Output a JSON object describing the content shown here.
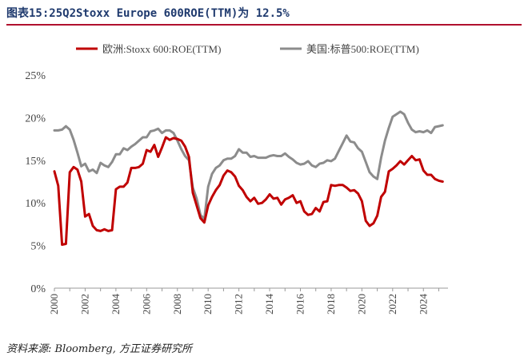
{
  "title": "图表15:25Q2Stoxx Europe 600ROE(TTM)为 12.5%",
  "source": "资料来源: Bloomberg, 方正证券研究所",
  "colors": {
    "europe": "#c00000",
    "us": "#8c8c8c",
    "title_rule": "#b0102e"
  },
  "chart_data": {
    "type": "line",
    "title": "25Q2Stoxx Europe 600ROE(TTM)为 12.5%",
    "xlabel": "",
    "ylabel": "",
    "xlim": [
      2000,
      2025.6
    ],
    "ylim": [
      0,
      25
    ],
    "x_ticks": [
      "2000",
      "2002",
      "2004",
      "2006",
      "2008",
      "2010",
      "2012",
      "2014",
      "2016",
      "2018",
      "2020",
      "2022",
      "2024"
    ],
    "y_ticks": [
      "0%",
      "5%",
      "10%",
      "15%",
      "20%",
      "25%"
    ],
    "legend_position": "top",
    "series": [
      {
        "name": "欧洲:Stoxx 600:ROE(TTM)",
        "color": "#c00000",
        "points": [
          [
            2000.0,
            13.7
          ],
          [
            2000.25,
            12.0
          ],
          [
            2000.5,
            5.1
          ],
          [
            2000.75,
            5.2
          ],
          [
            2001.0,
            13.6
          ],
          [
            2001.25,
            14.2
          ],
          [
            2001.5,
            13.9
          ],
          [
            2001.75,
            12.5
          ],
          [
            2002.0,
            8.4
          ],
          [
            2002.25,
            8.7
          ],
          [
            2002.5,
            7.3
          ],
          [
            2002.75,
            6.8
          ],
          [
            2003.0,
            6.7
          ],
          [
            2003.25,
            6.9
          ],
          [
            2003.5,
            6.7
          ],
          [
            2003.75,
            6.8
          ],
          [
            2004.0,
            11.6
          ],
          [
            2004.25,
            11.9
          ],
          [
            2004.5,
            11.9
          ],
          [
            2004.75,
            12.4
          ],
          [
            2005.0,
            14.1
          ],
          [
            2005.25,
            14.1
          ],
          [
            2005.5,
            14.2
          ],
          [
            2005.75,
            14.6
          ],
          [
            2006.0,
            16.2
          ],
          [
            2006.25,
            16.0
          ],
          [
            2006.5,
            16.8
          ],
          [
            2006.75,
            15.4
          ],
          [
            2007.0,
            16.5
          ],
          [
            2007.25,
            17.7
          ],
          [
            2007.5,
            17.4
          ],
          [
            2007.75,
            17.6
          ],
          [
            2008.0,
            17.5
          ],
          [
            2008.25,
            17.3
          ],
          [
            2008.5,
            16.6
          ],
          [
            2008.75,
            15.4
          ],
          [
            2009.0,
            11.2
          ],
          [
            2009.25,
            9.7
          ],
          [
            2009.5,
            8.2
          ],
          [
            2009.75,
            7.7
          ],
          [
            2010.0,
            9.7
          ],
          [
            2010.25,
            10.7
          ],
          [
            2010.5,
            11.5
          ],
          [
            2010.75,
            12.1
          ],
          [
            2011.0,
            13.2
          ],
          [
            2011.25,
            13.8
          ],
          [
            2011.5,
            13.6
          ],
          [
            2011.75,
            13.1
          ],
          [
            2012.0,
            12.0
          ],
          [
            2012.25,
            11.5
          ],
          [
            2012.5,
            10.7
          ],
          [
            2012.75,
            10.2
          ],
          [
            2013.0,
            10.6
          ],
          [
            2013.25,
            9.9
          ],
          [
            2013.5,
            10.0
          ],
          [
            2013.75,
            10.4
          ],
          [
            2014.0,
            11.0
          ],
          [
            2014.25,
            10.5
          ],
          [
            2014.5,
            10.6
          ],
          [
            2014.75,
            9.8
          ],
          [
            2015.0,
            10.4
          ],
          [
            2015.25,
            10.6
          ],
          [
            2015.5,
            10.9
          ],
          [
            2015.75,
            10.0
          ],
          [
            2016.0,
            10.2
          ],
          [
            2016.25,
            9.0
          ],
          [
            2016.5,
            8.6
          ],
          [
            2016.75,
            8.7
          ],
          [
            2017.0,
            9.4
          ],
          [
            2017.25,
            9.0
          ],
          [
            2017.5,
            10.1
          ],
          [
            2017.75,
            10.2
          ],
          [
            2018.0,
            12.1
          ],
          [
            2018.25,
            12.0
          ],
          [
            2018.5,
            12.1
          ],
          [
            2018.75,
            12.1
          ],
          [
            2019.0,
            11.8
          ],
          [
            2019.25,
            11.4
          ],
          [
            2019.5,
            11.5
          ],
          [
            2019.75,
            11.1
          ],
          [
            2020.0,
            10.2
          ],
          [
            2020.25,
            7.9
          ],
          [
            2020.5,
            7.3
          ],
          [
            2020.75,
            7.6
          ],
          [
            2021.0,
            8.5
          ],
          [
            2021.25,
            10.7
          ],
          [
            2021.5,
            11.3
          ],
          [
            2021.75,
            13.7
          ],
          [
            2022.0,
            14.0
          ],
          [
            2022.25,
            14.4
          ],
          [
            2022.5,
            14.9
          ],
          [
            2022.75,
            14.5
          ],
          [
            2023.0,
            15.0
          ],
          [
            2023.25,
            15.5
          ],
          [
            2023.5,
            15.0
          ],
          [
            2023.75,
            15.1
          ],
          [
            2024.0,
            13.8
          ],
          [
            2024.25,
            13.3
          ],
          [
            2024.5,
            13.3
          ],
          [
            2024.75,
            12.8
          ],
          [
            2025.0,
            12.6
          ],
          [
            2025.25,
            12.5
          ]
        ]
      },
      {
        "name": "美国:标普500:ROE(TTM)",
        "color": "#8c8c8c",
        "points": [
          [
            2000.0,
            18.5
          ],
          [
            2000.25,
            18.5
          ],
          [
            2000.5,
            18.6
          ],
          [
            2000.75,
            19.0
          ],
          [
            2001.0,
            18.6
          ],
          [
            2001.25,
            17.4
          ],
          [
            2001.5,
            15.9
          ],
          [
            2001.75,
            14.3
          ],
          [
            2002.0,
            14.6
          ],
          [
            2002.25,
            13.7
          ],
          [
            2002.5,
            13.9
          ],
          [
            2002.75,
            13.5
          ],
          [
            2003.0,
            14.7
          ],
          [
            2003.25,
            14.4
          ],
          [
            2003.5,
            14.2
          ],
          [
            2003.75,
            14.8
          ],
          [
            2004.0,
            15.7
          ],
          [
            2004.25,
            15.7
          ],
          [
            2004.5,
            16.4
          ],
          [
            2004.75,
            16.2
          ],
          [
            2005.0,
            16.6
          ],
          [
            2005.25,
            16.9
          ],
          [
            2005.5,
            17.3
          ],
          [
            2005.75,
            17.7
          ],
          [
            2006.0,
            17.7
          ],
          [
            2006.25,
            18.4
          ],
          [
            2006.5,
            18.5
          ],
          [
            2006.75,
            18.7
          ],
          [
            2007.0,
            18.2
          ],
          [
            2007.25,
            18.5
          ],
          [
            2007.5,
            18.5
          ],
          [
            2007.75,
            18.2
          ],
          [
            2008.0,
            17.3
          ],
          [
            2008.25,
            16.3
          ],
          [
            2008.5,
            15.5
          ],
          [
            2008.75,
            15.0
          ],
          [
            2009.0,
            11.8
          ],
          [
            2009.25,
            10.5
          ],
          [
            2009.5,
            8.6
          ],
          [
            2009.75,
            8.1
          ],
          [
            2010.0,
            11.9
          ],
          [
            2010.25,
            13.4
          ],
          [
            2010.5,
            14.1
          ],
          [
            2010.75,
            14.4
          ],
          [
            2011.0,
            15.0
          ],
          [
            2011.25,
            15.2
          ],
          [
            2011.5,
            15.2
          ],
          [
            2011.75,
            15.5
          ],
          [
            2012.0,
            16.3
          ],
          [
            2012.25,
            15.9
          ],
          [
            2012.5,
            15.9
          ],
          [
            2012.75,
            15.4
          ],
          [
            2013.0,
            15.5
          ],
          [
            2013.25,
            15.3
          ],
          [
            2013.5,
            15.3
          ],
          [
            2013.75,
            15.3
          ],
          [
            2014.0,
            15.5
          ],
          [
            2014.25,
            15.6
          ],
          [
            2014.5,
            15.5
          ],
          [
            2014.75,
            15.5
          ],
          [
            2015.0,
            15.8
          ],
          [
            2015.25,
            15.4
          ],
          [
            2015.5,
            15.1
          ],
          [
            2015.75,
            14.7
          ],
          [
            2016.0,
            14.5
          ],
          [
            2016.25,
            14.6
          ],
          [
            2016.5,
            14.9
          ],
          [
            2016.75,
            14.4
          ],
          [
            2017.0,
            14.2
          ],
          [
            2017.25,
            14.6
          ],
          [
            2017.5,
            14.7
          ],
          [
            2017.75,
            15.0
          ],
          [
            2018.0,
            14.9
          ],
          [
            2018.25,
            15.2
          ],
          [
            2018.5,
            16.1
          ],
          [
            2018.75,
            17.0
          ],
          [
            2019.0,
            17.9
          ],
          [
            2019.25,
            17.2
          ],
          [
            2019.5,
            17.1
          ],
          [
            2019.75,
            16.4
          ],
          [
            2020.0,
            16.0
          ],
          [
            2020.25,
            14.8
          ],
          [
            2020.5,
            13.6
          ],
          [
            2020.75,
            13.1
          ],
          [
            2021.0,
            12.8
          ],
          [
            2021.25,
            15.3
          ],
          [
            2021.5,
            17.3
          ],
          [
            2021.75,
            18.8
          ],
          [
            2022.0,
            20.1
          ],
          [
            2022.25,
            20.4
          ],
          [
            2022.5,
            20.7
          ],
          [
            2022.75,
            20.4
          ],
          [
            2023.0,
            19.4
          ],
          [
            2023.25,
            18.6
          ],
          [
            2023.5,
            18.3
          ],
          [
            2023.75,
            18.4
          ],
          [
            2024.0,
            18.3
          ],
          [
            2024.25,
            18.5
          ],
          [
            2024.5,
            18.2
          ],
          [
            2024.75,
            18.9
          ],
          [
            2025.0,
            19.0
          ],
          [
            2025.25,
            19.1
          ]
        ]
      }
    ]
  }
}
